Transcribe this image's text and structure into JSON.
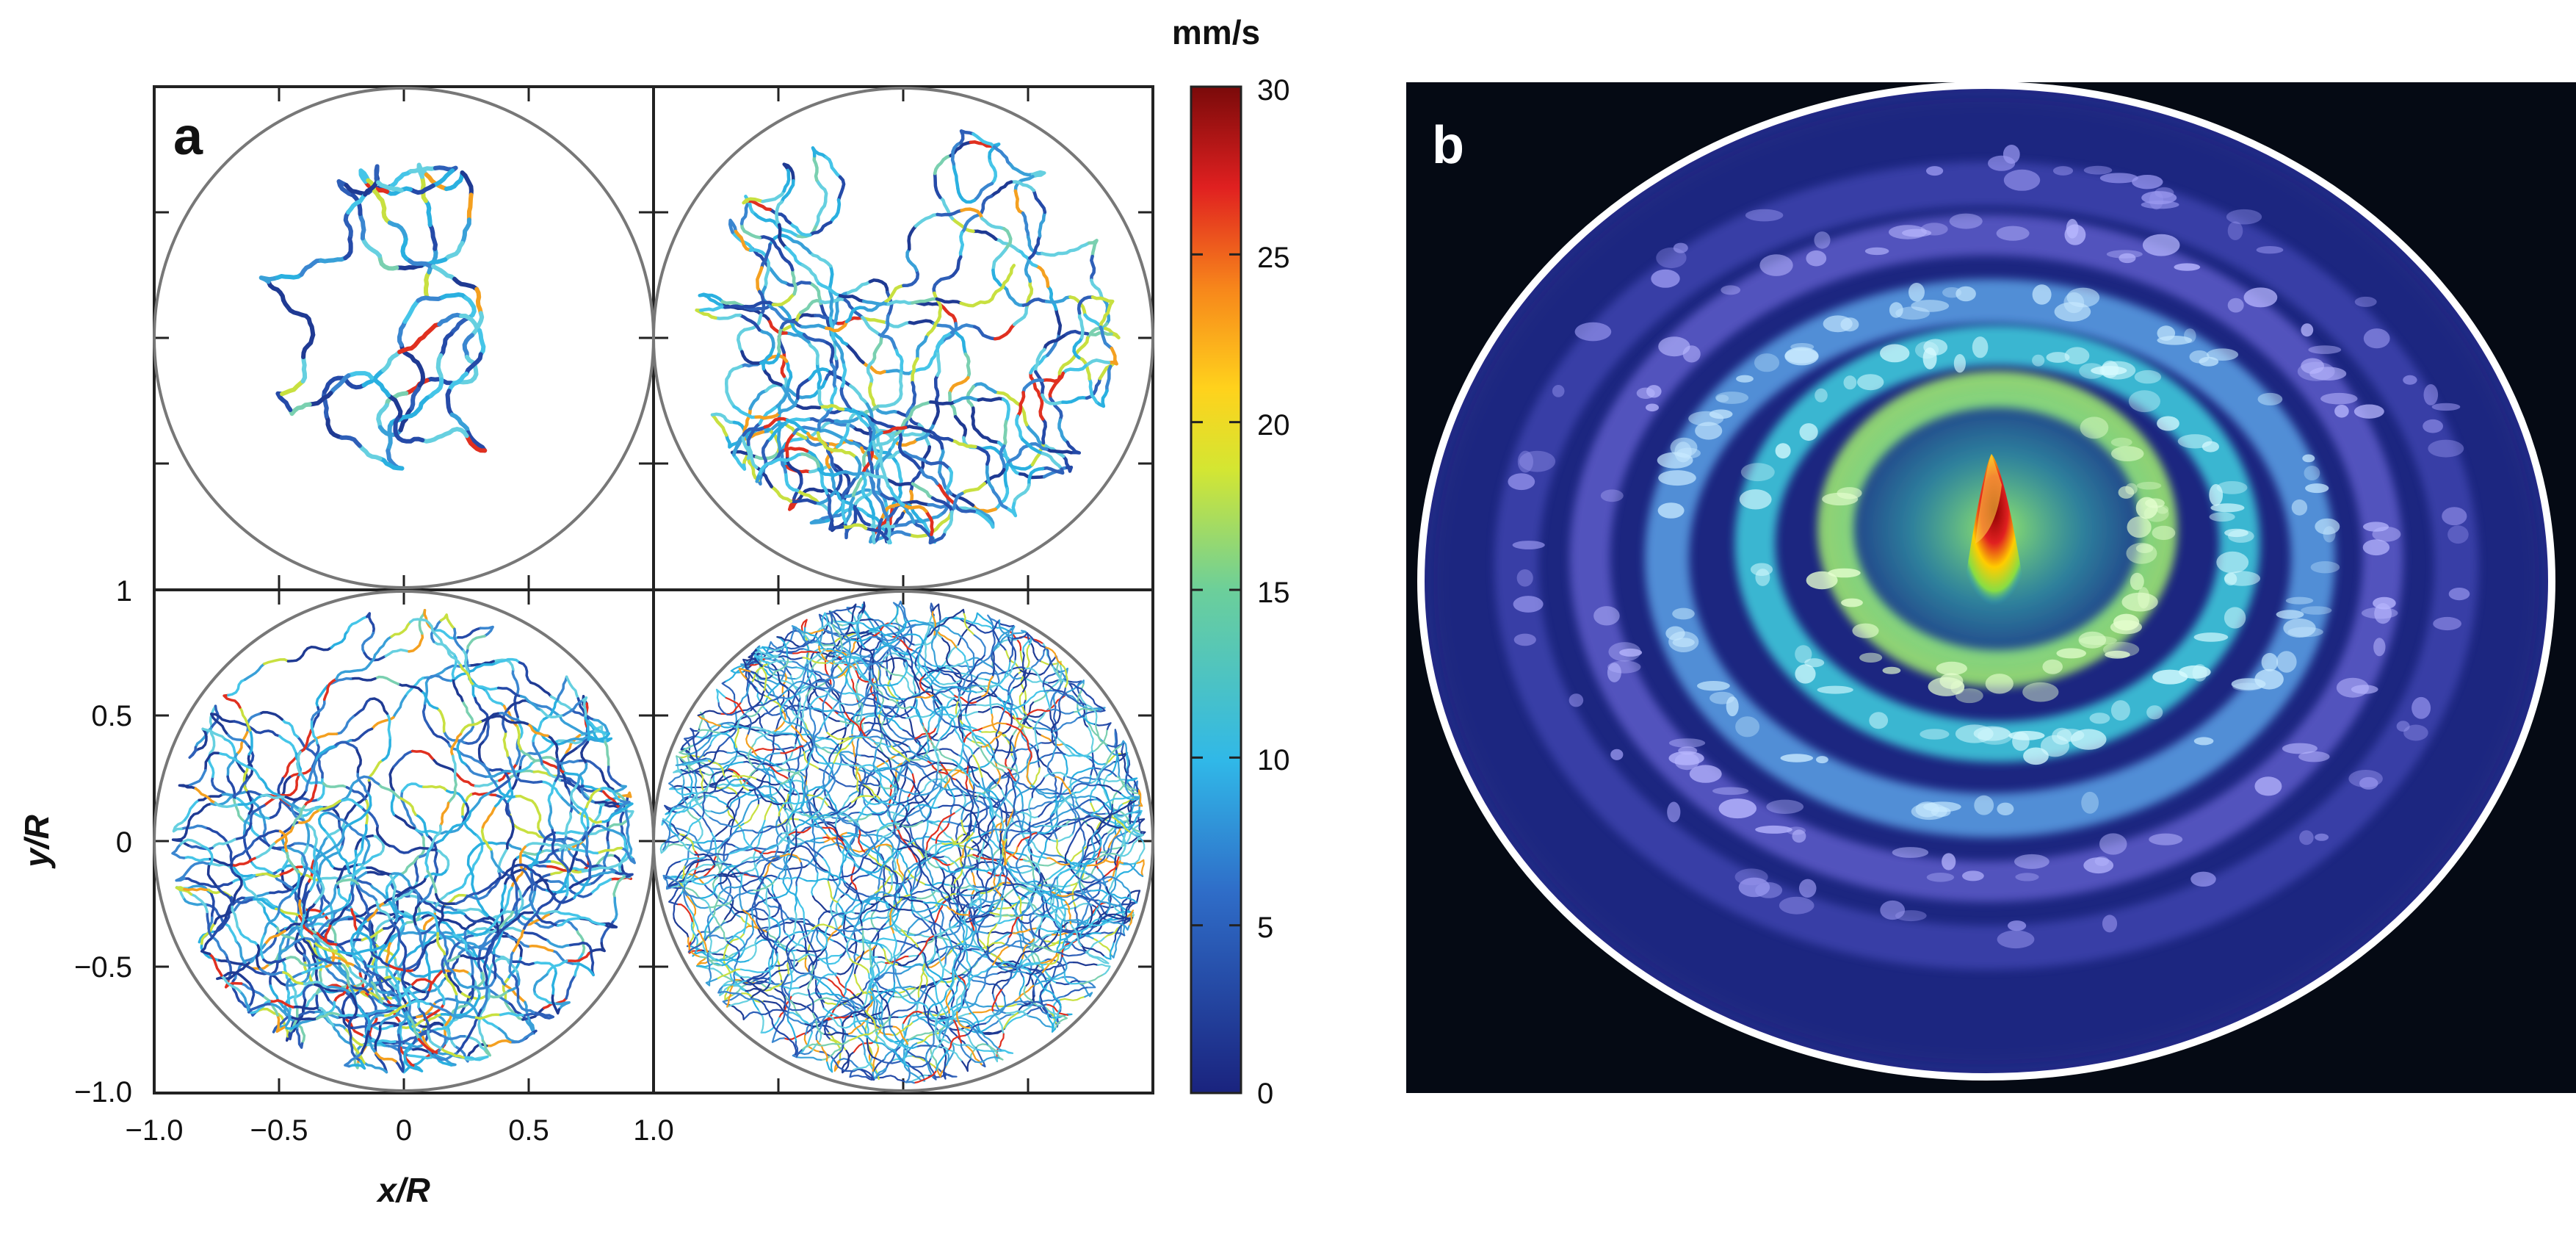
{
  "panel_a": {
    "label": "a",
    "x_axis_title": "x/R",
    "y_axis_title": "y/R",
    "x_ticks": [
      "−1.0",
      "−0.5",
      "0",
      "0.5",
      "1.0"
    ],
    "y_ticks": [
      "1",
      "0.5",
      "0",
      "−0.5",
      "−1.0"
    ],
    "colorbar": {
      "unit": "mm/s",
      "ticks": [
        "30",
        "25",
        "20",
        "15",
        "10",
        "5",
        "0"
      ]
    }
  },
  "panel_b": {
    "label": "b"
  },
  "chart_data": [
    {
      "type": "line",
      "description_free": true,
      "subplots": 4,
      "xlabel": "x/R",
      "ylabel": "y/R",
      "xlim": [
        -1.0,
        1.0
      ],
      "ylim": [
        -1.0,
        1.0
      ],
      "boundary": "circle of radius 1",
      "color_scale": {
        "label": "mm/s",
        "min": 0,
        "max": 30,
        "colormap": "jet"
      }
    },
    {
      "type": "heatmap",
      "color_scale": "jet"
    }
  ],
  "colors": {
    "panel_b_background": "#050a14",
    "circle_stroke": "#777777",
    "rim": "#ffffff"
  }
}
